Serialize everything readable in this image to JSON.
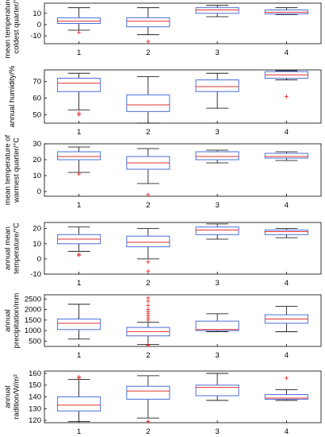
{
  "chart_data": [
    {
      "type": "box",
      "ylabel": "mean temperature of\ncoldest quarter/°C",
      "categories": [
        "1",
        "2",
        "3",
        "4"
      ],
      "yticks": [
        -10,
        0,
        10
      ],
      "ylim": [
        -17,
        19
      ],
      "boxes": [
        {
          "whislo": -5,
          "q1": 1,
          "med": 3,
          "q3": 6,
          "whishi": 15,
          "fliers": [
            -7
          ]
        },
        {
          "whislo": -9,
          "q1": -2,
          "med": 3,
          "q3": 6,
          "whishi": 15,
          "fliers": [
            -15
          ]
        },
        {
          "whislo": 7,
          "q1": 10,
          "med": 13,
          "q3": 15,
          "whishi": 17,
          "fliers": []
        },
        {
          "whislo": 9,
          "q1": 9.5,
          "med": 11,
          "q3": 13,
          "whishi": 15,
          "fliers": []
        }
      ]
    },
    {
      "type": "box",
      "ylabel": "annual humidity/%",
      "categories": [
        "1",
        "2",
        "3",
        "4"
      ],
      "yticks": [
        50,
        60,
        70
      ],
      "ylim": [
        45,
        77
      ],
      "boxes": [
        {
          "whislo": 53,
          "q1": 64,
          "med": 69,
          "q3": 72,
          "whishi": 75,
          "fliers": [
            51,
            50
          ]
        },
        {
          "whislo": 45,
          "q1": 52,
          "med": 56,
          "q3": 62,
          "whishi": 73,
          "fliers": []
        },
        {
          "whislo": 54,
          "q1": 64,
          "med": 67,
          "q3": 71,
          "whishi": 75,
          "fliers": []
        },
        {
          "whislo": 71,
          "q1": 72,
          "med": 74,
          "q3": 76,
          "whishi": 76.5,
          "fliers": [
            61
          ]
        }
      ]
    },
    {
      "type": "box",
      "ylabel": "mean temperature of\nwarmest quarter/°C",
      "categories": [
        "1",
        "2",
        "3",
        "4"
      ],
      "yticks": [
        0,
        10,
        20,
        30
      ],
      "ylim": [
        -3,
        30
      ],
      "boxes": [
        {
          "whislo": 12,
          "q1": 20,
          "med": 22,
          "q3": 25,
          "whishi": 28,
          "fliers": [
            11
          ]
        },
        {
          "whislo": 5,
          "q1": 14,
          "med": 18,
          "q3": 22,
          "whishi": 27,
          "fliers": [
            -2
          ]
        },
        {
          "whislo": 18,
          "q1": 20,
          "med": 22,
          "q3": 25,
          "whishi": 26,
          "fliers": []
        },
        {
          "whislo": 19.5,
          "q1": 21,
          "med": 22,
          "q3": 24,
          "whishi": 25,
          "fliers": []
        }
      ]
    },
    {
      "type": "box",
      "ylabel": "annual mean\ntemperature/°C",
      "categories": [
        "1",
        "2",
        "3",
        "4"
      ],
      "yticks": [
        -10,
        0,
        10,
        20
      ],
      "ylim": [
        -10,
        24
      ],
      "boxes": [
        {
          "whislo": 5,
          "q1": 10,
          "med": 13,
          "q3": 16,
          "whishi": 21,
          "fliers": [
            3,
            2.5
          ]
        },
        {
          "whislo": 0,
          "q1": 8,
          "med": 11,
          "q3": 15,
          "whishi": 20,
          "fliers": [
            -2,
            -8
          ]
        },
        {
          "whislo": 13,
          "q1": 16,
          "med": 19,
          "q3": 21,
          "whishi": 23,
          "fliers": []
        },
        {
          "whislo": 14,
          "q1": 16,
          "med": 18,
          "q3": 19,
          "whishi": 20,
          "fliers": []
        }
      ]
    },
    {
      "type": "box",
      "ylabel": "annual\nprecipitation/mm",
      "categories": [
        "1",
        "2",
        "3",
        "4"
      ],
      "yticks": [
        500,
        1000,
        1500,
        2000,
        2500
      ],
      "ylim": [
        250,
        2700
      ],
      "boxes": [
        {
          "whislo": 600,
          "q1": 1050,
          "med": 1350,
          "q3": 1550,
          "whishi": 2250,
          "fliers": []
        },
        {
          "whislo": 350,
          "q1": 750,
          "med": 950,
          "q3": 1150,
          "whishi": 1400,
          "fliers": [
            1500,
            1600,
            1700,
            1800,
            1900,
            2000,
            2200,
            2400,
            2550,
            330,
            310
          ]
        },
        {
          "whislo": 950,
          "q1": 1000,
          "med": 1050,
          "q3": 1450,
          "whishi": 1800,
          "fliers": []
        },
        {
          "whislo": 950,
          "q1": 1350,
          "med": 1550,
          "q3": 1750,
          "whishi": 2150,
          "fliers": []
        }
      ]
    },
    {
      "type": "box",
      "ylabel": "annual\nradition/W/m²",
      "categories": [
        "1",
        "2",
        "3",
        "4"
      ],
      "yticks": [
        120,
        130,
        140,
        150,
        160
      ],
      "ylim": [
        118,
        162
      ],
      "boxes": [
        {
          "whislo": 119,
          "q1": 128,
          "med": 133,
          "q3": 140,
          "whishi": 155,
          "fliers": [
            156,
            157
          ]
        },
        {
          "whislo": 122,
          "q1": 138,
          "med": 145,
          "q3": 149,
          "whishi": 158,
          "fliers": [
            119
          ]
        },
        {
          "whislo": 137,
          "q1": 141,
          "med": 148,
          "q3": 150,
          "whishi": 160,
          "fliers": []
        },
        {
          "whislo": 137,
          "q1": 138,
          "med": 139,
          "q3": 142,
          "whishi": 146,
          "fliers": [
            156
          ]
        }
      ]
    }
  ]
}
